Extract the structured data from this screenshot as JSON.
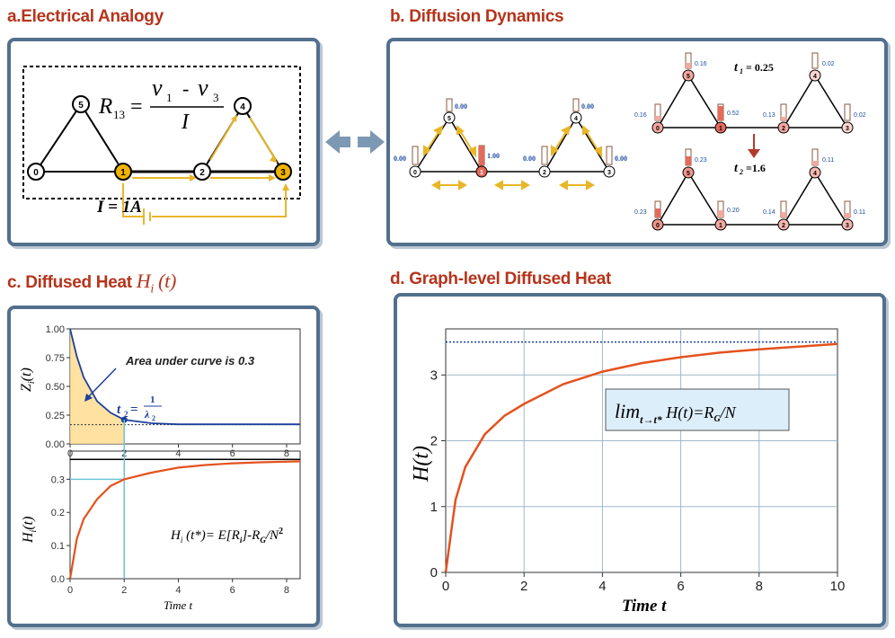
{
  "panel_a": {
    "title": "a.Electrical Analogy",
    "formula_lhs": "R",
    "formula_lhs_sub": "13",
    "formula_num_a": "ν",
    "formula_num_a_sub": "1",
    "formula_num_minus": "-",
    "formula_num_b": "ν",
    "formula_num_b_sub": "3",
    "formula_den": "I",
    "current_label": "I = 1A",
    "nodes": [
      "0",
      "1",
      "2",
      "3",
      "4",
      "5"
    ],
    "colors": {
      "highlight": "#f0b400",
      "arrow": "#e8b628"
    }
  },
  "panel_b": {
    "title": "b. Diffusion Dynamics",
    "left_graph": {
      "nodes": [
        "0",
        "1",
        "5",
        "2",
        "3",
        "4"
      ],
      "values": [
        "0.00",
        "1.00",
        "0.00",
        "0.00",
        "0.00",
        "0.00"
      ]
    },
    "t1_label": "t",
    "t1_sub": "1",
    "t1_value": "= 0.25",
    "t1_nodes": [
      "5",
      "0",
      "1",
      "2",
      "3",
      "4"
    ],
    "t1_values": [
      "0.16",
      "0.16",
      "0.52",
      "0.13",
      "0.02",
      "0.02"
    ],
    "t2_label": "t",
    "t2_sub": "2",
    "t2_value": "=1.6",
    "t2_nodes": [
      "5",
      "0",
      "1",
      "2",
      "3",
      "4"
    ],
    "t2_values": [
      "0.23",
      "0.23",
      "0.20",
      "0.14",
      "0.11",
      "0.11"
    ],
    "colors": {
      "value_text": "#1f4fa0",
      "hot": "#e46a5c",
      "warm": "#f4a8a0"
    }
  },
  "panel_c": {
    "title": "c. Diffused Heat ",
    "title_symbol": "H",
    "title_sub": "i",
    "title_arg": " (t)",
    "top": {
      "ylabel": "Z",
      "ylabel_sub": "i",
      "ylabel_arg": "(t)",
      "yticks": [
        "0.00",
        "0.25",
        "0.50",
        "0.75",
        "1.00"
      ],
      "xticks": [
        "0",
        "2",
        "4",
        "6",
        "8"
      ],
      "annotation": "Area under curve is 0.3",
      "t2_label": "t",
      "t2_sub": "2",
      "t2_eq": "=",
      "t2_num": "1",
      "t2_den": "λ",
      "t2_den_sub": "2"
    },
    "bottom": {
      "ylabel": "H",
      "ylabel_sub": "i",
      "ylabel_arg": "(t)",
      "yticks": [
        "0.0",
        "0.1",
        "0.2",
        "0.3"
      ],
      "xticks": [
        "0",
        "2",
        "4",
        "6",
        "8"
      ],
      "xlabel": "Time t",
      "formula_h": "H",
      "formula_h_sub": "i",
      "formula_mid": " (t*)= E[R",
      "formula_r_sub": "i",
      "formula_end": "]-R",
      "formula_g_sub": "G",
      "formula_tail": "/N",
      "formula_sup": "2"
    }
  },
  "panel_d": {
    "title": "d. Graph-level Diffused Heat",
    "ylabel": "H(t)",
    "xlabel": "Time t",
    "lim_main": "lim",
    "lim_sub": "t→t*",
    "lim_rest": " H(t)=R",
    "lim_rg_sub": "G",
    "lim_tail": "/N"
  },
  "chart_data": [
    {
      "type": "line",
      "title": "Zi(t)",
      "xlabel": "",
      "ylabel": "Zi(t)",
      "xlim": [
        0,
        8.5
      ],
      "ylim": [
        0,
        1.0
      ],
      "series": [
        {
          "name": "Zi(t)",
          "x": [
            0,
            0.25,
            0.5,
            1,
            1.5,
            2,
            3,
            4,
            5,
            6,
            7,
            8.5
          ],
          "y": [
            1.0,
            0.76,
            0.58,
            0.37,
            0.27,
            0.21,
            0.18,
            0.17,
            0.17,
            0.17,
            0.17,
            0.17
          ]
        }
      ],
      "asymptote": 0.167,
      "annotations": [
        "Area under curve is 0.3",
        "t2 = 1/λ2"
      ]
    },
    {
      "type": "line",
      "title": "Hi(t)",
      "xlabel": "Time t",
      "ylabel": "Hi(t)",
      "xlim": [
        0,
        8.5
      ],
      "ylim": [
        0,
        0.35
      ],
      "series": [
        {
          "name": "Hi(t)",
          "x": [
            0,
            0.25,
            0.5,
            1,
            1.5,
            2,
            3,
            4,
            5,
            6,
            7,
            8.5
          ],
          "y": [
            0,
            0.12,
            0.18,
            0.24,
            0.28,
            0.3,
            0.32,
            0.335,
            0.343,
            0.348,
            0.351,
            0.354
          ]
        }
      ],
      "marked_point": {
        "x": 2,
        "y": 0.3
      },
      "asymptote": 0.36
    },
    {
      "type": "line",
      "title": "Graph-level Diffused Heat",
      "xlabel": "Time t",
      "ylabel": "H(t)",
      "xlim": [
        0,
        10
      ],
      "ylim": [
        0,
        3.7
      ],
      "xticks": [
        0,
        2,
        4,
        6,
        8,
        10
      ],
      "yticks": [
        0,
        1,
        2,
        3
      ],
      "grid": true,
      "series": [
        {
          "name": "H(t)",
          "x": [
            0,
            0.25,
            0.5,
            1,
            1.5,
            2,
            3,
            4,
            5,
            6,
            7,
            8,
            9,
            10
          ],
          "y": [
            0,
            1.1,
            1.6,
            2.1,
            2.38,
            2.56,
            2.86,
            3.05,
            3.18,
            3.27,
            3.34,
            3.39,
            3.43,
            3.47
          ]
        }
      ],
      "asymptote": 3.5
    }
  ]
}
